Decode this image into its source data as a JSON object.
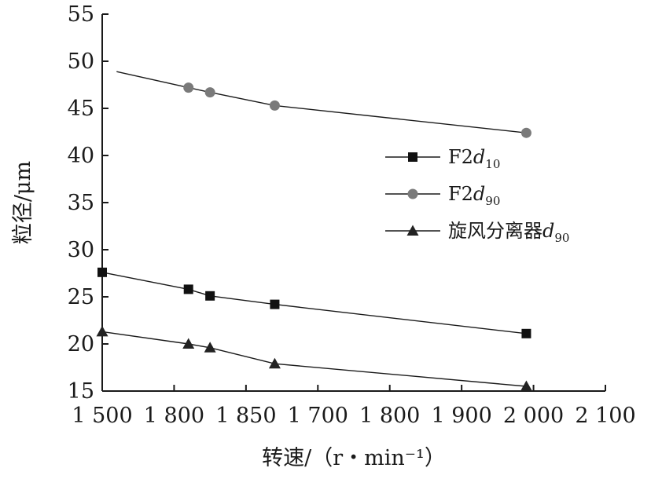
{
  "chart_data": {
    "type": "line",
    "title": "",
    "xlabel": "转速/（r・min⁻¹）",
    "ylabel": "粒径/μm",
    "x_tick_labels": [
      "1 500",
      "1 800",
      "1 850",
      "1 700",
      "1 800",
      "1 900",
      "2 000",
      "2 100"
    ],
    "ylim": [
      15,
      55
    ],
    "y_ticks": [
      15,
      20,
      25,
      30,
      35,
      40,
      45,
      50,
      55
    ],
    "grid": false,
    "legend_position": "center-right",
    "x_positions": [
      0.0,
      1.2,
      1.5,
      2.4,
      5.9
    ],
    "series": [
      {
        "name": "F2d10",
        "legend_main": "F2",
        "legend_var": "d",
        "legend_sub": "10",
        "marker": "square",
        "color": "#1a1a1a",
        "marker_color": "#111111",
        "start_x": 0.0,
        "values": [
          27.6,
          25.8,
          25.1,
          24.2,
          21.1
        ]
      },
      {
        "name": "F2d90",
        "legend_main": "F2",
        "legend_var": "d",
        "legend_sub": "90",
        "marker": "circle",
        "color": "#1a1a1a",
        "marker_color": "#7a7a7a",
        "start_x": 0.2,
        "start_value": 48.9,
        "values": [
          null,
          47.2,
          46.7,
          45.3,
          42.4
        ]
      },
      {
        "name": "旋风分离器d90",
        "legend_main": "旋风分离器",
        "legend_var": "d",
        "legend_sub": "90",
        "marker": "triangle",
        "color": "#1a1a1a",
        "marker_color": "#222222",
        "start_x": 0.0,
        "values": [
          21.3,
          20.0,
          19.6,
          17.9,
          15.5
        ]
      }
    ]
  }
}
